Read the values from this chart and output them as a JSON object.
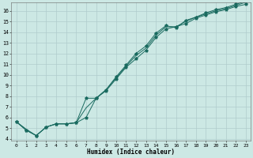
{
  "xlabel": "Humidex (Indice chaleur)",
  "background_color": "#cce8e4",
  "grid_color": "#b0cccc",
  "line_color": "#1a6b60",
  "xlim": [
    -0.5,
    23.5
  ],
  "ylim": [
    3.8,
    16.8
  ],
  "yticks": [
    4,
    5,
    6,
    7,
    8,
    9,
    10,
    11,
    12,
    13,
    14,
    15,
    16
  ],
  "xticks": [
    0,
    1,
    2,
    3,
    4,
    5,
    6,
    7,
    8,
    9,
    10,
    11,
    12,
    13,
    14,
    15,
    16,
    17,
    18,
    19,
    20,
    21,
    22,
    23
  ],
  "line1_y": [
    5.6,
    4.8,
    4.3,
    5.1,
    5.4,
    5.4,
    5.5,
    6.0,
    7.8,
    8.5,
    9.6,
    10.7,
    11.5,
    12.3,
    13.5,
    14.3,
    14.5,
    14.8,
    15.3,
    15.6,
    15.9,
    16.1,
    16.4,
    16.6
  ],
  "line2_y": [
    5.6,
    4.8,
    4.3,
    5.1,
    5.4,
    5.4,
    5.5,
    7.8,
    7.8,
    8.6,
    9.8,
    10.9,
    12.0,
    12.7,
    13.9,
    14.6,
    14.4,
    15.1,
    15.4,
    15.8,
    16.1,
    16.3,
    16.6,
    16.9
  ],
  "line3_y": [
    5.6,
    4.9,
    4.3,
    5.1,
    5.4,
    5.4,
    5.5,
    6.9,
    7.8,
    8.6,
    9.7,
    10.8,
    11.8,
    12.5,
    13.7,
    14.5,
    14.5,
    15.0,
    15.4,
    15.7,
    16.0,
    16.2,
    16.5,
    16.8
  ]
}
